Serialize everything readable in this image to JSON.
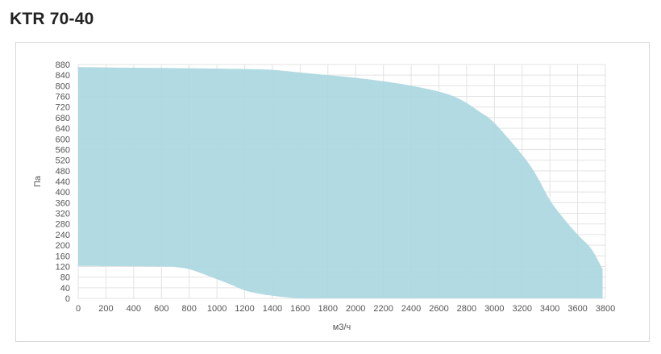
{
  "header": {
    "title": "KTR 70-40"
  },
  "chart_data": {
    "type": "area",
    "title": "KTR 70-40",
    "xlabel": "м3/ч",
    "ylabel": "Па",
    "xlim": [
      0,
      3800
    ],
    "ylim": [
      0,
      880
    ],
    "xticks": [
      0,
      200,
      400,
      600,
      800,
      1000,
      1200,
      1400,
      1600,
      1800,
      2000,
      2200,
      2400,
      2600,
      2800,
      3000,
      3200,
      3400,
      3600,
      3800
    ],
    "yticks": [
      0,
      40,
      80,
      120,
      160,
      200,
      240,
      280,
      320,
      360,
      400,
      440,
      480,
      520,
      560,
      600,
      640,
      680,
      720,
      760,
      800,
      840,
      880
    ],
    "grid": true,
    "colors": {
      "fill": "#abd7e0",
      "grid": "#e3e3e3"
    },
    "upper_curve": {
      "x": [
        0,
        400,
        800,
        1200,
        1400,
        1600,
        1800,
        2000,
        2200,
        2400,
        2600,
        2750,
        2900,
        3000,
        3200,
        3300,
        3400,
        3500,
        3600,
        3700,
        3780
      ],
      "y": [
        870,
        868,
        866,
        863,
        860,
        850,
        840,
        830,
        817,
        800,
        778,
        750,
        700,
        660,
        540,
        465,
        370,
        300,
        240,
        185,
        110
      ]
    },
    "lower_curve": {
      "x": [
        0,
        600,
        700,
        800,
        900,
        1000,
        1100,
        1200,
        1300,
        1400,
        1500,
        1600,
        1800,
        2000,
        3780
      ],
      "y": [
        122,
        120,
        118,
        110,
        92,
        72,
        52,
        30,
        18,
        10,
        4,
        0,
        0,
        0,
        0
      ]
    }
  }
}
